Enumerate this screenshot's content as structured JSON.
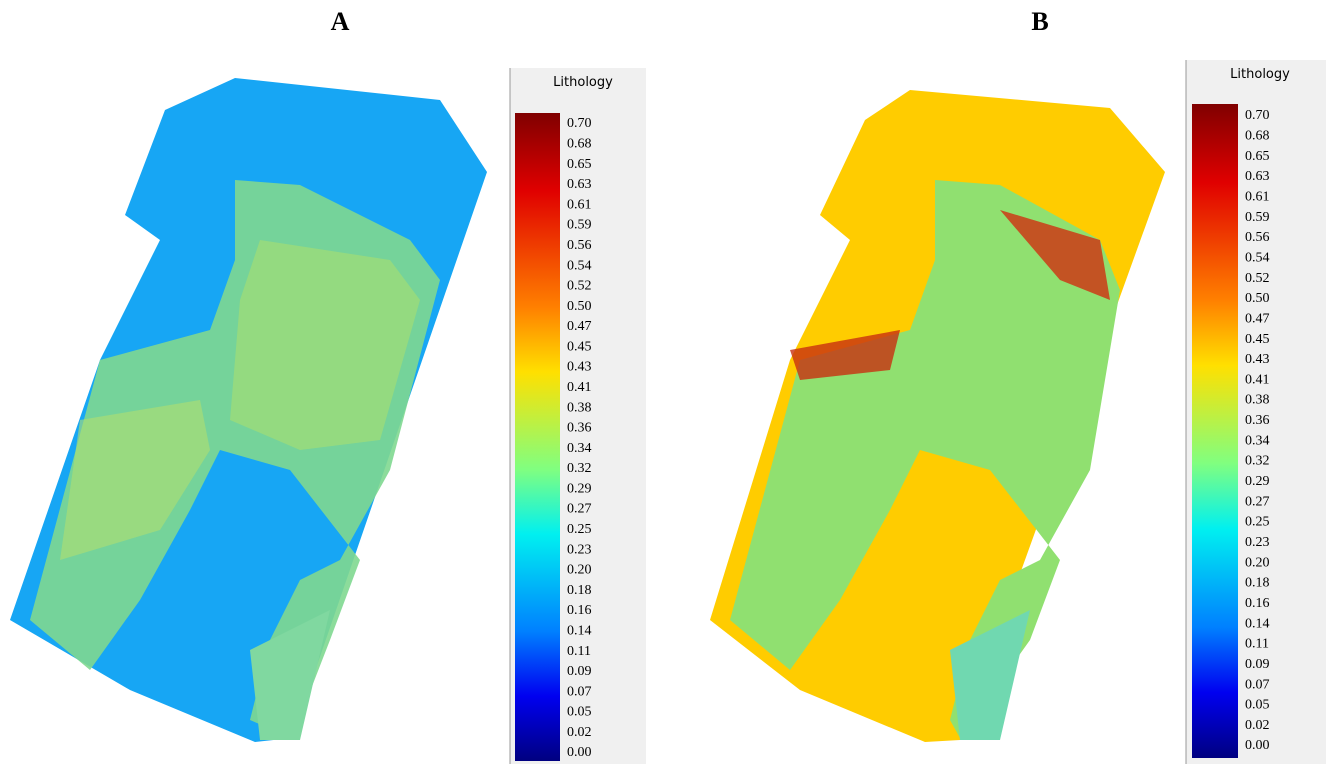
{
  "panels": [
    {
      "label": "A",
      "legend_title": "Lithology",
      "ticks": [
        "0.70",
        "0.68",
        "0.65",
        "0.63",
        "0.61",
        "0.59",
        "0.56",
        "0.54",
        "0.52",
        "0.50",
        "0.47",
        "0.45",
        "0.43",
        "0.41",
        "0.38",
        "0.36",
        "0.34",
        "0.32",
        "0.29",
        "0.27",
        "0.25",
        "0.23",
        "0.20",
        "0.18",
        "0.16",
        "0.14",
        "0.11",
        "0.09",
        "0.07",
        "0.05",
        "0.02",
        "0.00"
      ]
    },
    {
      "label": "B",
      "legend_title": "Lithology",
      "ticks": [
        "0.70",
        "0.68",
        "0.65",
        "0.63",
        "0.61",
        "0.59",
        "0.56",
        "0.54",
        "0.52",
        "0.50",
        "0.47",
        "0.45",
        "0.43",
        "0.41",
        "0.38",
        "0.36",
        "0.34",
        "0.32",
        "0.29",
        "0.27",
        "0.25",
        "0.23",
        "0.20",
        "0.18",
        "0.16",
        "0.14",
        "0.11",
        "0.09",
        "0.07",
        "0.05",
        "0.02",
        "0.00"
      ]
    }
  ]
}
